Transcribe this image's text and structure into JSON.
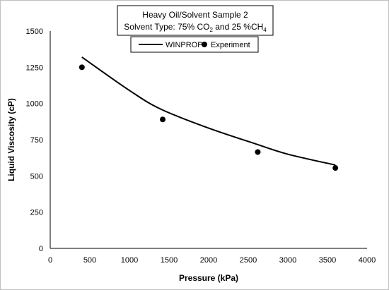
{
  "chart_data": {
    "type": "line",
    "title_line1": "Heavy Oil/Solvent Sample 2",
    "title_line2": {
      "prefix": "Solvent Type: 75% CO",
      "sub1": "2",
      "middle": " and 25 %CH",
      "sub2": "4"
    },
    "xlabel": "Pressure (kPa)",
    "ylabel": "Liquid Viscosity (cP)",
    "xlim": [
      0,
      4000
    ],
    "ylim": [
      0,
      1500
    ],
    "x_ticks": [
      0,
      500,
      1000,
      1500,
      2000,
      2500,
      3000,
      3500,
      4000
    ],
    "y_ticks": [
      0,
      250,
      500,
      750,
      1000,
      1250,
      1500
    ],
    "grid": false,
    "legend_placement": "top-center",
    "series": [
      {
        "name": "WINPROP",
        "style": "line",
        "color": "#000000",
        "x": [
          400,
          1000,
          1400,
          2000,
          2600,
          3000,
          3600
        ],
        "y": [
          1320,
          1090,
          960,
          830,
          720,
          650,
          575
        ]
      },
      {
        "name": "Experiment",
        "style": "scatter",
        "color": "#000000",
        "x": [
          400,
          1420,
          2620,
          3600
        ],
        "y": [
          1250,
          890,
          665,
          555
        ]
      }
    ]
  }
}
